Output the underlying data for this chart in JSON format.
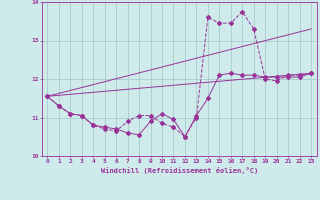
{
  "xlabel": "Windchill (Refroidissement éolien,°C)",
  "background_color": "#ceeaea",
  "grid_color": "#aacccc",
  "line_color": "#993399",
  "xlim": [
    -0.5,
    23.5
  ],
  "ylim": [
    10,
    14
  ],
  "xticks": [
    0,
    1,
    2,
    3,
    4,
    5,
    6,
    7,
    8,
    9,
    10,
    11,
    12,
    13,
    14,
    15,
    16,
    17,
    18,
    19,
    20,
    21,
    22,
    23
  ],
  "yticks": [
    10,
    11,
    12,
    13,
    14
  ],
  "series1_x": [
    0,
    1,
    2,
    3,
    4,
    5,
    6,
    7,
    8,
    9,
    10,
    11,
    12,
    13,
    14,
    15,
    16,
    17,
    18,
    19,
    20,
    21,
    22,
    23
  ],
  "series1_y": [
    11.55,
    11.3,
    11.1,
    11.05,
    10.8,
    10.7,
    10.65,
    10.9,
    11.05,
    11.05,
    10.85,
    10.75,
    10.5,
    11.0,
    13.6,
    13.45,
    13.45,
    13.75,
    13.3,
    12.0,
    11.95,
    12.1,
    12.1,
    12.15
  ],
  "series2_x": [
    0,
    1,
    2,
    3,
    4,
    5,
    6,
    7,
    8,
    9,
    10,
    11,
    12,
    13,
    14,
    15,
    16,
    17,
    18,
    19,
    20,
    21,
    22,
    23
  ],
  "series2_y": [
    11.55,
    11.3,
    11.1,
    11.05,
    10.8,
    10.75,
    10.7,
    10.6,
    10.55,
    10.9,
    11.1,
    10.95,
    10.5,
    11.05,
    11.5,
    12.1,
    12.15,
    12.1,
    12.1,
    12.05,
    12.05,
    12.05,
    12.05,
    12.15
  ],
  "series3_x": [
    0,
    23
  ],
  "series3_y": [
    11.55,
    12.15
  ],
  "series4_x": [
    0,
    23
  ],
  "series4_y": [
    11.55,
    13.3
  ]
}
